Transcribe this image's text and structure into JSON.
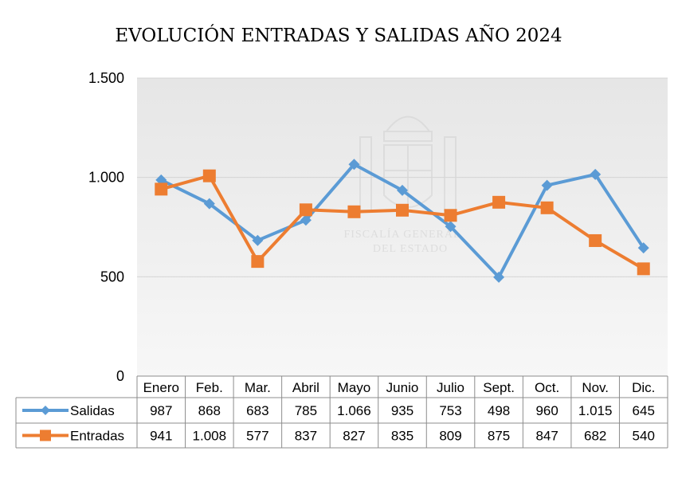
{
  "chart_data": {
    "type": "line",
    "title": "EVOLUCIÓN ENTRADAS Y SALIDAS AÑO 2024",
    "categories": [
      "Enero",
      "Feb.",
      "Mar.",
      "Abril",
      "Mayo",
      "Junio",
      "Julio",
      "Sept.",
      "Oct.",
      "Nov.",
      "Dic."
    ],
    "ylim": [
      0,
      1500
    ],
    "yticks": [
      0,
      500,
      1000,
      1500
    ],
    "ytick_labels": [
      "0",
      "500",
      "1.000",
      "1.500"
    ],
    "grid": true,
    "legend": "data-table",
    "series": [
      {
        "name": "Salidas",
        "color": "#5b9bd5",
        "marker": "diamond",
        "values": [
          987,
          868,
          683,
          785,
          1066,
          935,
          753,
          498,
          960,
          1015,
          645
        ],
        "value_labels": [
          "987",
          "868",
          "683",
          "785",
          "1.066",
          "935",
          "753",
          "498",
          "960",
          "1.015",
          "645"
        ]
      },
      {
        "name": "Entradas",
        "color": "#ed7d31",
        "marker": "square",
        "values": [
          941,
          1008,
          577,
          837,
          827,
          835,
          809,
          875,
          847,
          682,
          540
        ],
        "value_labels": [
          "941",
          "1.008",
          "577",
          "837",
          "827",
          "835",
          "809",
          "875",
          "847",
          "682",
          "540"
        ]
      }
    ],
    "watermark": [
      "FISCALÍA GENERAL",
      "DEL ESTADO"
    ]
  }
}
